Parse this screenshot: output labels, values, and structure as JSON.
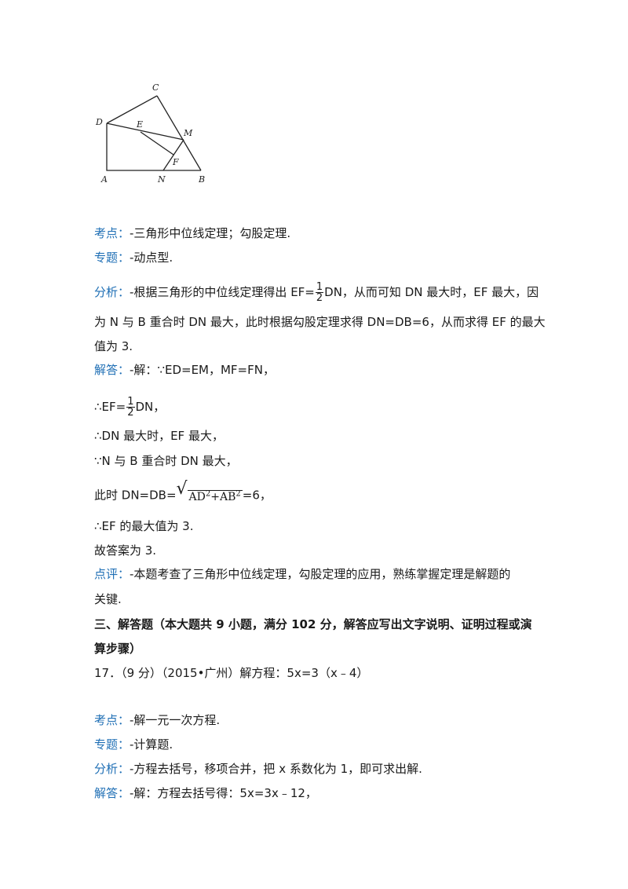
{
  "figure": {
    "labels": {
      "C": "C",
      "D": "D",
      "E": "E",
      "M": "M",
      "F": "F",
      "A": "A",
      "N": "N",
      "B": "B"
    }
  },
  "q16": {
    "kaodian_tag": "考点：",
    "kaodian_text": "-三角形中位线定理；勾股定理.",
    "zhuanti_tag": "专题：",
    "zhuanti_text": "-动点型.",
    "fenxi_tag": "分析：",
    "fenxi_pre": "-根据三角形的中位线定理得出 EF=",
    "fenxi_frac_num": "1",
    "fenxi_frac_den": "2",
    "fenxi_post": "DN，从而可知 DN 最大时，EF 最大，因",
    "fenxi_line2": "为 N 与 B 重合时 DN 最大，此时根据勾股定理求得 DN=DB=6，从而求得 EF 的最大",
    "fenxi_line3": "值为 3.",
    "jieda_tag": "解答：",
    "jieda_line1": "-解：∵ED=EM，MF=FN，",
    "jieda_line2_pre": "∴EF=",
    "jieda_line2_num": "1",
    "jieda_line2_den": "2",
    "jieda_line2_post": "DN，",
    "jieda_line3": "∴DN 最大时，EF 最大，",
    "jieda_line4": "∵N 与 B 重合时 DN 最大，",
    "jieda_line5_pre": "此时 DN=DB=",
    "jieda_line5_sqrt": "AD",
    "jieda_line5_sqrt2": "+AB",
    "jieda_line5_exp": "2",
    "jieda_line5_post": "=6，",
    "jieda_line6": "∴EF 的最大值为 3.",
    "jieda_line7": "故答案为 3.",
    "dianping_tag": "点评：",
    "dianping_text": "-本题考查了三角形中位线定理，勾股定理的应用，熟练掌握定理是解题的",
    "dianping_line2": "关键."
  },
  "section3": {
    "title_line1": "三、解答题（本大题共 9 小题，满分 102 分，解答应写出文字说明、证明过程或演",
    "title_line2": "算步骤）"
  },
  "q17": {
    "stem": "17．（9 分）（2015•广州）解方程：5x=3（x﹣4）",
    "kaodian_tag": "考点：",
    "kaodian_text": "-解一元一次方程.",
    "zhuanti_tag": "专题：",
    "zhuanti_text": "-计算题.",
    "fenxi_tag": "分析：",
    "fenxi_text": "-方程去括号，移项合并，把 x 系数化为 1，即可求出解.",
    "jieda_tag": "解答：",
    "jieda_text": "-解：方程去括号得：5x=3x﹣12，"
  }
}
